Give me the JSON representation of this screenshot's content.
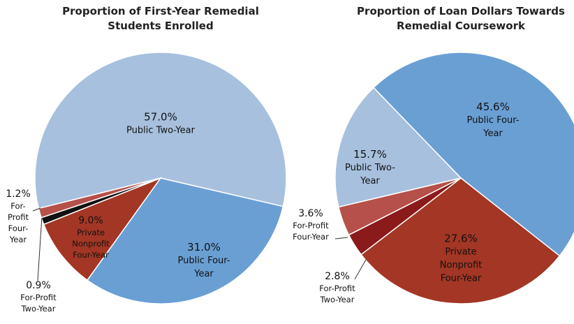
{
  "chart_data": [
    {
      "type": "pie",
      "title": "Proportion of First-Year Remedial Students Enrolled",
      "categories": [
        "Public Two-Year",
        "Public Four-Year",
        "Private Nonprofit Four-Year",
        "For-Profit Two-Year",
        "For-Profit Four-Year"
      ],
      "values": [
        57.0,
        31.0,
        9.0,
        0.9,
        1.2
      ],
      "value_labels": [
        "57.0%",
        "31.0%",
        "9.0%",
        "0.9%",
        "1.2%"
      ],
      "colors": [
        "#a7c0de",
        "#6a9fd4",
        "#a33624",
        "#111111",
        "#b5504a"
      ]
    },
    {
      "type": "pie",
      "title": "Proportion of Loan Dollars Towards Remedial Coursework",
      "categories": [
        "Public Four-Year",
        "Private Nonprofit Four-Year",
        "For-Profit Two-Year",
        "For-Profit Four-Year",
        "Public Two-Year"
      ],
      "values": [
        45.6,
        27.6,
        2.8,
        3.6,
        15.7
      ],
      "value_labels": [
        "45.6%",
        "27.6%",
        "2.8%",
        "3.6%",
        "15.7%"
      ],
      "colors": [
        "#6a9fd4",
        "#a33624",
        "#8b1a1a",
        "#b5504a",
        "#a7c0de"
      ]
    }
  ]
}
